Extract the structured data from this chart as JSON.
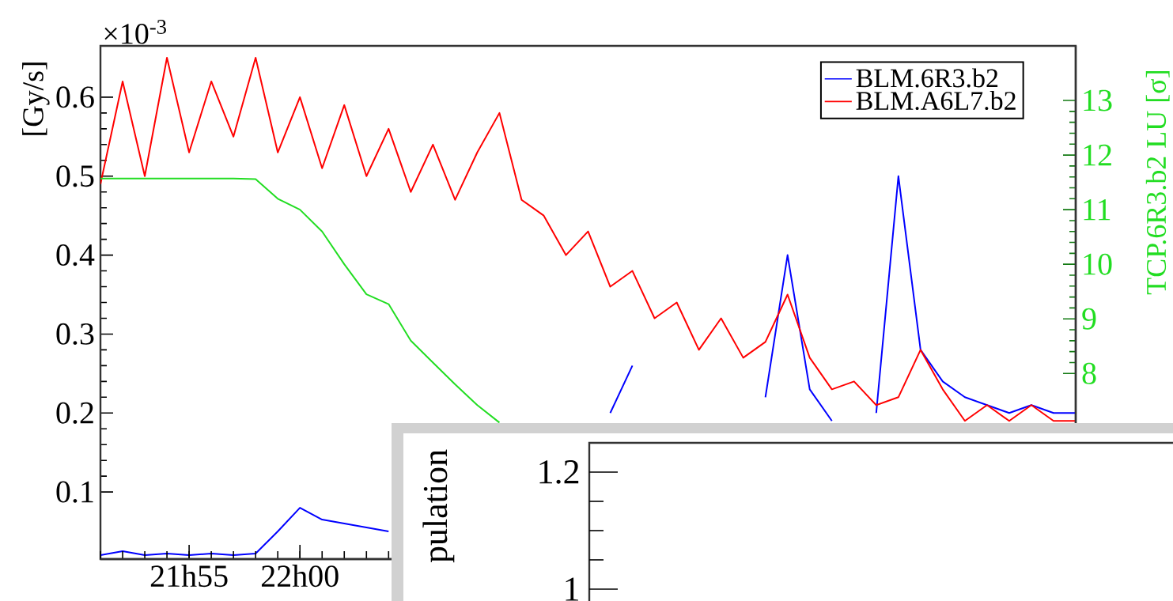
{
  "chart_data": [
    {
      "type": "line",
      "ylabel": "[Gy/s]",
      "y2label": "TCP.6R3.b2 LU [σ]",
      "annotations": [
        "×10$^{-3}$"
      ],
      "categories": [
        null,
        null,
        null,
        null,
        "21h55",
        null,
        null,
        null,
        null,
        "22h00",
        null,
        null,
        null,
        null,
        null,
        null,
        null,
        null,
        null,
        null,
        null,
        null,
        null,
        null,
        null,
        null,
        null,
        null,
        null,
        null,
        null,
        null,
        null,
        null,
        null,
        null,
        null,
        null,
        null,
        null,
        null,
        null,
        null,
        null,
        null
      ],
      "series": [
        {
          "name": "BLM.6R3.b2",
          "color": "#0000ff",
          "values": [
            0.02,
            0.025,
            0.02,
            0.022,
            0.02,
            0.022,
            0.02,
            0.022,
            0.05,
            0.08,
            0.065,
            0.06,
            0.055,
            0.05,
            null,
            null,
            null,
            null,
            null,
            null,
            null,
            null,
            null,
            0.2,
            0.26,
            null,
            null,
            null,
            null,
            null,
            0.22,
            0.4,
            0.23,
            0.19,
            null,
            0.2,
            0.5,
            0.28,
            0.24,
            0.22,
            0.21,
            0.2,
            0.21,
            0.2,
            0.2
          ]
        },
        {
          "name": "BLM.A6L7.b2",
          "color": "#ff0000",
          "values": [
            0.49,
            0.62,
            0.5,
            0.65,
            0.53,
            0.62,
            0.55,
            0.65,
            0.53,
            0.6,
            0.51,
            0.59,
            0.5,
            0.56,
            0.48,
            0.54,
            0.47,
            0.53,
            0.58,
            0.47,
            0.45,
            0.4,
            0.43,
            0.36,
            0.38,
            0.32,
            0.34,
            0.28,
            0.32,
            0.27,
            0.29,
            0.35,
            0.27,
            0.23,
            0.24,
            0.21,
            0.22,
            0.28,
            0.23,
            0.19,
            0.21,
            0.19,
            0.21,
            0.19,
            0.19
          ]
        },
        {
          "color": "#22dd22",
          "axis": "y2",
          "values": [
            11.57,
            11.57,
            11.57,
            11.57,
            11.57,
            11.57,
            11.57,
            11.56,
            11.2,
            11.0,
            10.6,
            10.0,
            9.45,
            9.27,
            8.6,
            8.2,
            7.8,
            7.42,
            7.1,
            null,
            null,
            null,
            null,
            null,
            null,
            null,
            null,
            null,
            null,
            null,
            null,
            null,
            null,
            null,
            null,
            null,
            null,
            null,
            null,
            null,
            null,
            null,
            null,
            null,
            null
          ]
        }
      ],
      "ylim": [
        0.015,
        0.665
      ],
      "yticks": [
        0.1,
        0.2,
        0.3,
        0.4,
        0.5,
        0.6
      ],
      "y2lim": [
        4.6,
        14.0
      ],
      "y2ticks": [
        8,
        9,
        10,
        11,
        12,
        13
      ],
      "legend": "top right"
    },
    {
      "type": "other",
      "ylabel": "pulation",
      "annotations": [
        "1.2",
        "1"
      ]
    }
  ]
}
